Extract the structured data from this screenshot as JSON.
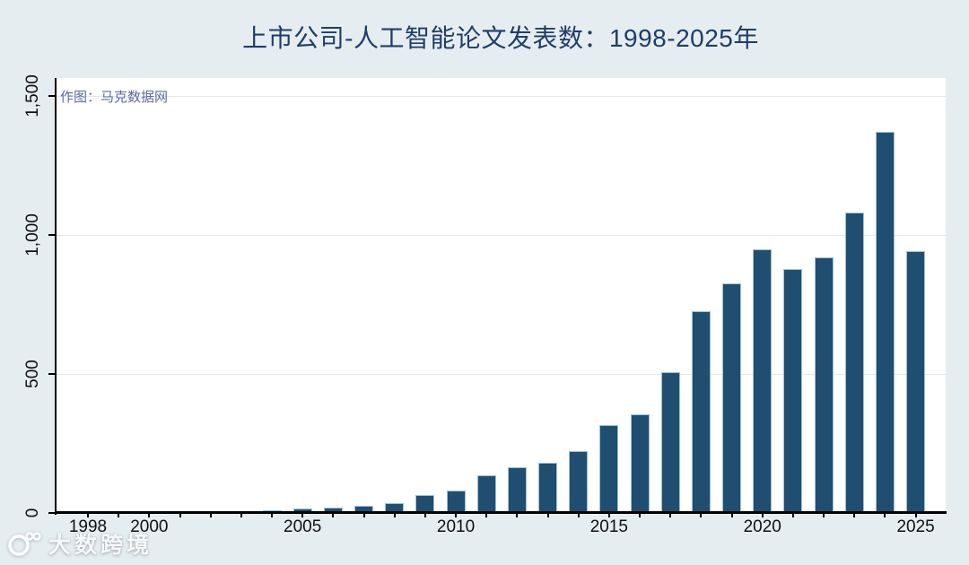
{
  "title": "上市公司-人工智能论文发表数：1998-2025年",
  "plot_watermark": "作图：马克数据网",
  "footer_watermark": {
    "logo": "circle-100-logo",
    "text": "大数跨境"
  },
  "colors": {
    "background": "#e6edf0",
    "plot_background": "#ffffff",
    "bar": "#1f4e70",
    "bar_outline": "#9fc1d8",
    "gridline": "#dfe9ef",
    "axis": "#000000",
    "title_text": "#1f3d68",
    "plot_watermark_text": "#5c6b9c",
    "tick_label_text": "#101010"
  },
  "chart_data": {
    "type": "bar",
    "title": "上市公司-人工智能论文发表数：1998-2025年",
    "xlabel": "",
    "ylabel": "",
    "categories": [
      1998,
      1999,
      2000,
      2001,
      2002,
      2003,
      2004,
      2005,
      2006,
      2007,
      2008,
      2009,
      2010,
      2011,
      2012,
      2013,
      2014,
      2015,
      2016,
      2017,
      2018,
      2019,
      2020,
      2021,
      2022,
      2023,
      2024,
      2025
    ],
    "values": [
      5,
      6,
      6,
      6,
      6,
      7,
      10,
      15,
      20,
      27,
      36,
      65,
      82,
      135,
      165,
      182,
      222,
      315,
      356,
      505,
      727,
      827,
      950,
      877,
      920,
      1080,
      1370,
      942
    ],
    "x_tick_labels": [
      "1998",
      "2000",
      "2005",
      "2010",
      "2015",
      "2020",
      "2025"
    ],
    "y_ticks": [
      0,
      500,
      1000,
      1500
    ],
    "y_tick_labels": [
      "0",
      "500",
      "1,000",
      "1,500"
    ],
    "ylim": [
      0,
      1560
    ],
    "grid": "horizontal-only",
    "legend": "none",
    "y_label_rotation": 90,
    "annotations": [
      "作图：马克数据网"
    ]
  }
}
